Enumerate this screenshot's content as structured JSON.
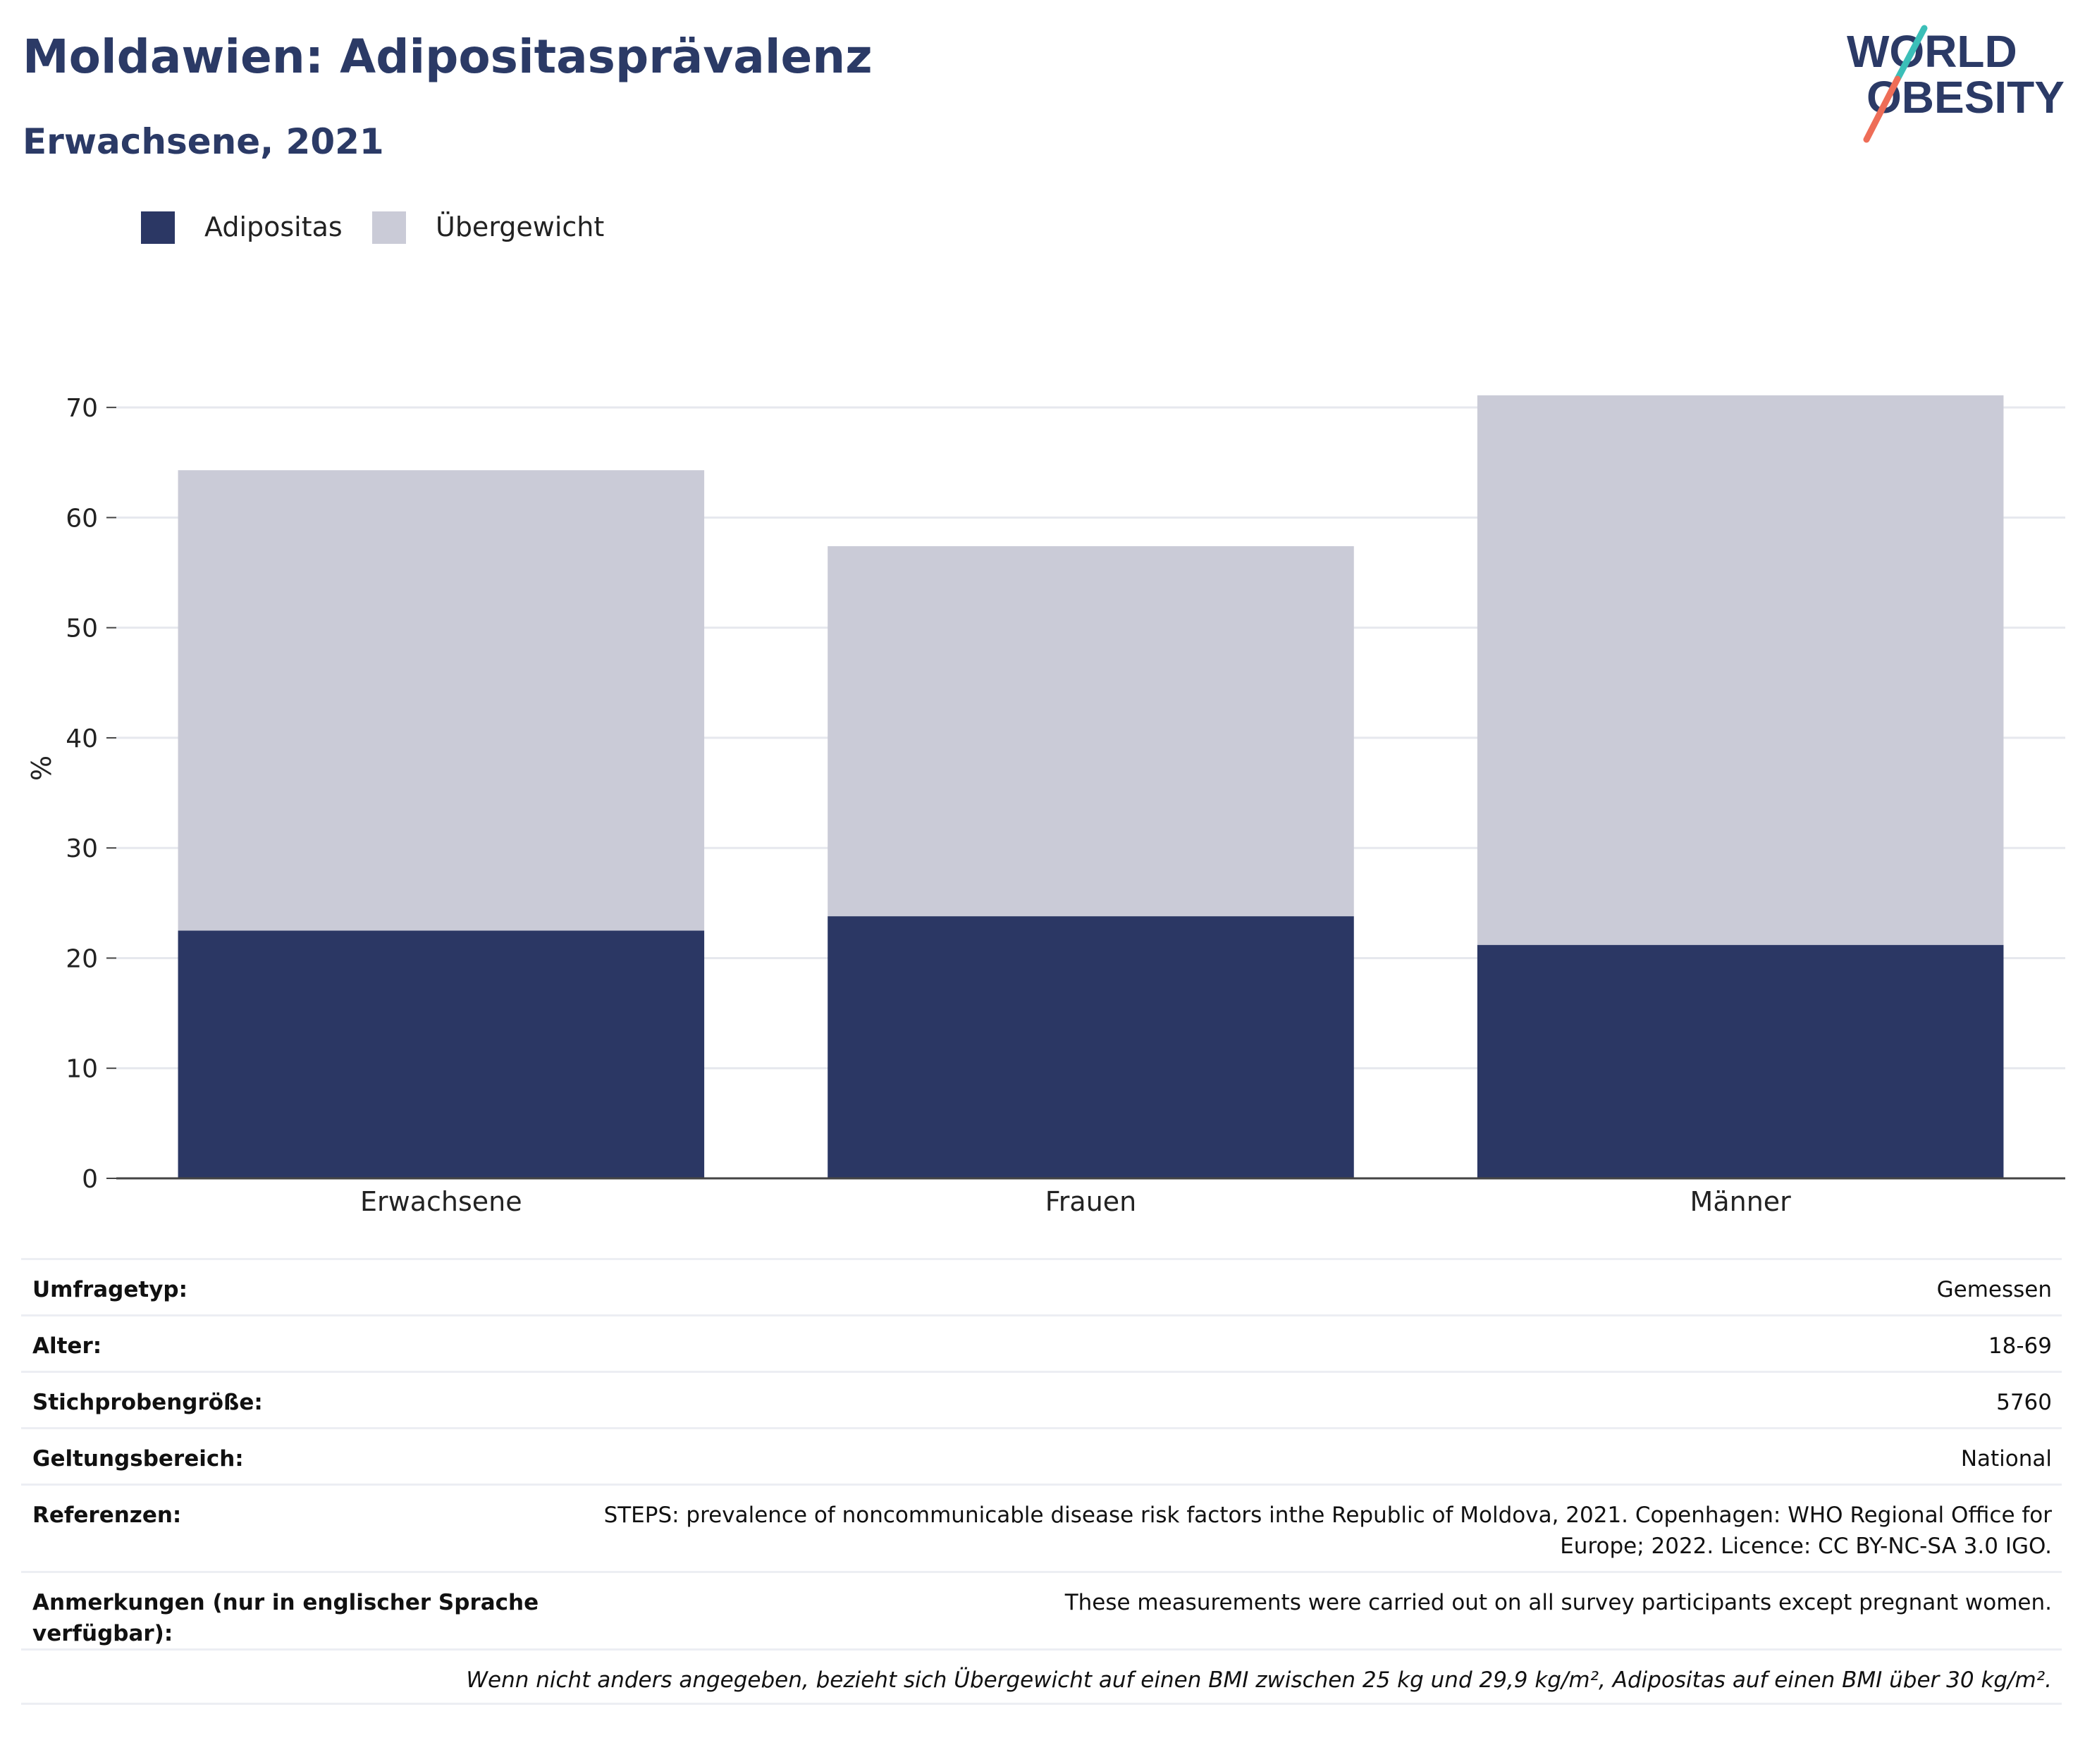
{
  "header": {
    "title": "Moldawien: Adipositasprävalenz",
    "subtitle": "Erwachsene, 2021"
  },
  "logo": {
    "line1": "WORLD",
    "line2": "OBESITY",
    "colors": {
      "text": "#2b3a66",
      "slash_top": "#3bbfb8",
      "slash_bottom": "#ee6d57"
    }
  },
  "legend": [
    {
      "label": "Adipositas",
      "color": "#2b3764"
    },
    {
      "label": "Übergewicht",
      "color": "#cacbd7"
    }
  ],
  "chart_data": {
    "type": "bar",
    "stacked": true,
    "categories": [
      "Erwachsene",
      "Frauen",
      "Männer"
    ],
    "series": [
      {
        "name": "Adipositas",
        "values": [
          22.5,
          23.8,
          21.2
        ],
        "color": "#2b3764"
      },
      {
        "name": "Übergewicht",
        "values": [
          41.8,
          33.6,
          49.9
        ],
        "color": "#cacbd7"
      }
    ],
    "ylabel": "%",
    "xlabel": "",
    "ylim": [
      0,
      75
    ],
    "yticks": [
      0,
      10,
      20,
      30,
      40,
      50,
      60,
      70
    ],
    "grid": true,
    "legend_position": "top-left"
  },
  "meta": {
    "rows": [
      {
        "label": "Umfragetyp:",
        "value": "Gemessen"
      },
      {
        "label": "Alter:",
        "value": "18-69"
      },
      {
        "label": "Stichprobengröße:",
        "value": "5760"
      },
      {
        "label": "Geltungsbereich:",
        "value": "National"
      },
      {
        "label": "Referenzen:",
        "value": "STEPS: prevalence of noncommunicable disease risk factors inthe Republic of Moldova, 2021. Copenhagen: WHO Regional Office for Europe; 2022. Licence: CC BY-NC-SA 3.0 IGO."
      },
      {
        "label": "Anmerkungen (nur in englischer Sprache verfügbar):",
        "value": "These measurements were carried out on all survey participants except pregnant women."
      }
    ],
    "footnote": "Wenn nicht anders angegeben, bezieht sich Übergewicht auf einen BMI zwischen 25 kg und 29,9 kg/m², Adipositas auf einen BMI über 30 kg/m²."
  }
}
